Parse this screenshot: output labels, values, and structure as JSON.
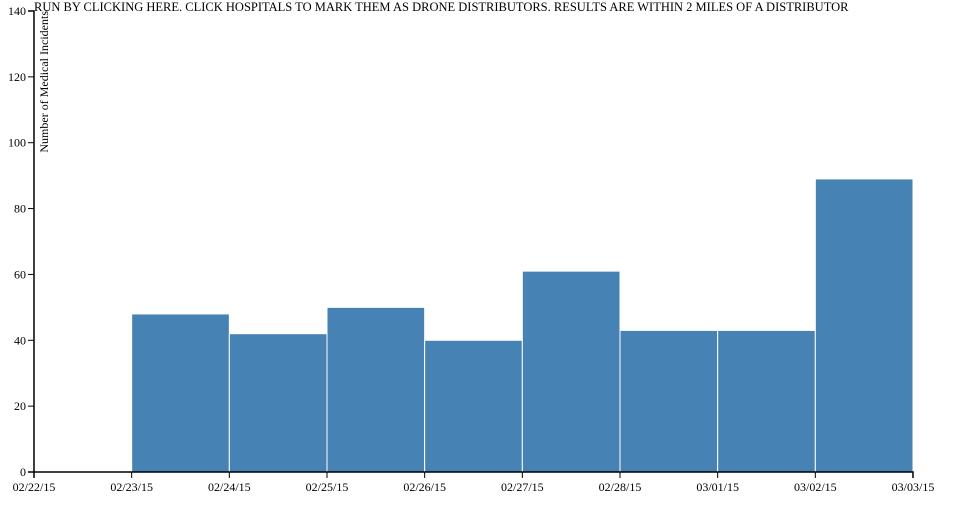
{
  "run_link_text": "RUN BY CLICKING HERE. CLICK HOSPITALS TO MARK THEM AS DRONE DISTRIBUTORS. RESULTS ARE WITHIN 2 MILES OF A DISTRIBUTOR",
  "chart_data": {
    "type": "bar",
    "title": "",
    "xlabel": "",
    "ylabel": "Number of Medical Incidents",
    "x_ticks": [
      "02/22/15",
      "02/23/15",
      "02/24/15",
      "02/25/15",
      "02/26/15",
      "02/27/15",
      "02/28/15",
      "03/01/15",
      "03/02/15",
      "03/03/15"
    ],
    "y_ticks": [
      0,
      20,
      40,
      60,
      80,
      100,
      120,
      140
    ],
    "ylim": [
      0,
      140
    ],
    "bins": [
      {
        "start": "02/22/15",
        "end": "02/23/15",
        "value": 0
      },
      {
        "start": "02/23/15",
        "end": "02/24/15",
        "value": 48
      },
      {
        "start": "02/24/15",
        "end": "02/25/15",
        "value": 42
      },
      {
        "start": "02/25/15",
        "end": "02/26/15",
        "value": 50
      },
      {
        "start": "02/26/15",
        "end": "02/27/15",
        "value": 40
      },
      {
        "start": "02/27/15",
        "end": "02/28/15",
        "value": 61
      },
      {
        "start": "02/28/15",
        "end": "03/01/15",
        "value": 43
      },
      {
        "start": "03/01/15",
        "end": "03/02/15",
        "value": 43
      },
      {
        "start": "03/02/15",
        "end": "03/03/15",
        "value": 89
      }
    ],
    "bar_color": "#4682b4",
    "grid": false
  }
}
